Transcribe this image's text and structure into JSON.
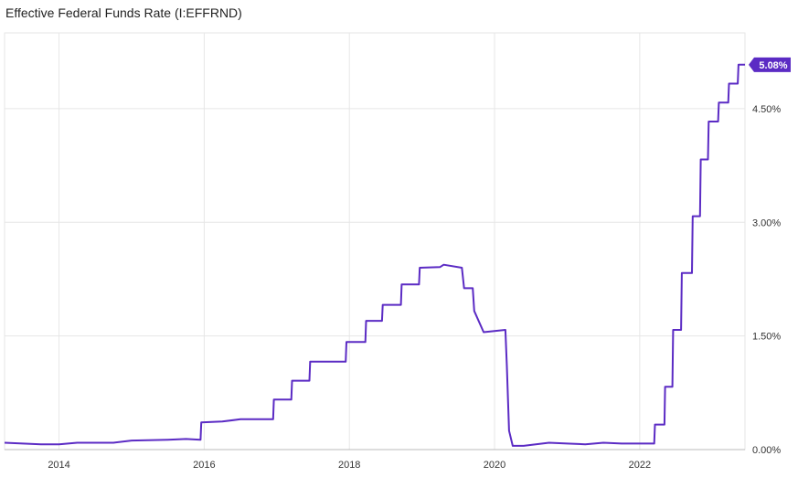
{
  "chart_data": {
    "type": "line",
    "title": "Effective Federal Funds Rate (I:EFFRND)",
    "xlabel": "",
    "ylabel": "",
    "xlim": [
      2013.25,
      2023.45
    ],
    "ylim": [
      0,
      5.5
    ],
    "x_ticks": [
      {
        "value": 2014,
        "label": "2014"
      },
      {
        "value": 2016,
        "label": "2016"
      },
      {
        "value": 2018,
        "label": "2018"
      },
      {
        "value": 2020,
        "label": "2020"
      },
      {
        "value": 2022,
        "label": "2022"
      }
    ],
    "y_ticks": [
      {
        "value": 0,
        "label": "0.00%"
      },
      {
        "value": 1.5,
        "label": "1.50%"
      },
      {
        "value": 3.0,
        "label": "3.00%"
      },
      {
        "value": 4.5,
        "label": "4.50%"
      }
    ],
    "grid": true,
    "colors": {
      "line": "#5b2bc4",
      "grid": "#e6e6e6",
      "end_label_bg": "#5b2bc4"
    },
    "end_label": "5.08%",
    "series": [
      {
        "name": "",
        "points": [
          [
            2013.25,
            0.09
          ],
          [
            2013.5,
            0.08
          ],
          [
            2013.75,
            0.07
          ],
          [
            2014.0,
            0.07
          ],
          [
            2014.25,
            0.09
          ],
          [
            2014.5,
            0.09
          ],
          [
            2014.75,
            0.09
          ],
          [
            2015.0,
            0.12
          ],
          [
            2015.5,
            0.13
          ],
          [
            2015.75,
            0.14
          ],
          [
            2015.95,
            0.13
          ],
          [
            2015.96,
            0.36
          ],
          [
            2016.25,
            0.37
          ],
          [
            2016.5,
            0.4
          ],
          [
            2016.95,
            0.4
          ],
          [
            2016.96,
            0.66
          ],
          [
            2017.2,
            0.66
          ],
          [
            2017.21,
            0.91
          ],
          [
            2017.45,
            0.91
          ],
          [
            2017.46,
            1.16
          ],
          [
            2017.95,
            1.16
          ],
          [
            2017.96,
            1.42
          ],
          [
            2018.22,
            1.42
          ],
          [
            2018.23,
            1.7
          ],
          [
            2018.45,
            1.7
          ],
          [
            2018.46,
            1.91
          ],
          [
            2018.71,
            1.91
          ],
          [
            2018.72,
            2.18
          ],
          [
            2018.96,
            2.18
          ],
          [
            2018.97,
            2.4
          ],
          [
            2019.25,
            2.41
          ],
          [
            2019.3,
            2.44
          ],
          [
            2019.55,
            2.4
          ],
          [
            2019.58,
            2.13
          ],
          [
            2019.7,
            2.13
          ],
          [
            2019.72,
            1.83
          ],
          [
            2019.85,
            1.55
          ],
          [
            2020.15,
            1.58
          ],
          [
            2020.17,
            1.1
          ],
          [
            2020.2,
            0.25
          ],
          [
            2020.25,
            0.05
          ],
          [
            2020.4,
            0.05
          ],
          [
            2020.75,
            0.09
          ],
          [
            2021.0,
            0.08
          ],
          [
            2021.25,
            0.07
          ],
          [
            2021.5,
            0.09
          ],
          [
            2021.75,
            0.08
          ],
          [
            2022.0,
            0.08
          ],
          [
            2022.2,
            0.08
          ],
          [
            2022.21,
            0.33
          ],
          [
            2022.34,
            0.33
          ],
          [
            2022.35,
            0.83
          ],
          [
            2022.45,
            0.83
          ],
          [
            2022.46,
            1.58
          ],
          [
            2022.57,
            1.58
          ],
          [
            2022.58,
            2.33
          ],
          [
            2022.72,
            2.33
          ],
          [
            2022.73,
            3.08
          ],
          [
            2022.83,
            3.08
          ],
          [
            2022.84,
            3.83
          ],
          [
            2022.94,
            3.83
          ],
          [
            2022.95,
            4.33
          ],
          [
            2023.08,
            4.33
          ],
          [
            2023.09,
            4.58
          ],
          [
            2023.22,
            4.58
          ],
          [
            2023.23,
            4.83
          ],
          [
            2023.35,
            4.83
          ],
          [
            2023.36,
            5.08
          ],
          [
            2023.45,
            5.08
          ]
        ]
      }
    ]
  }
}
